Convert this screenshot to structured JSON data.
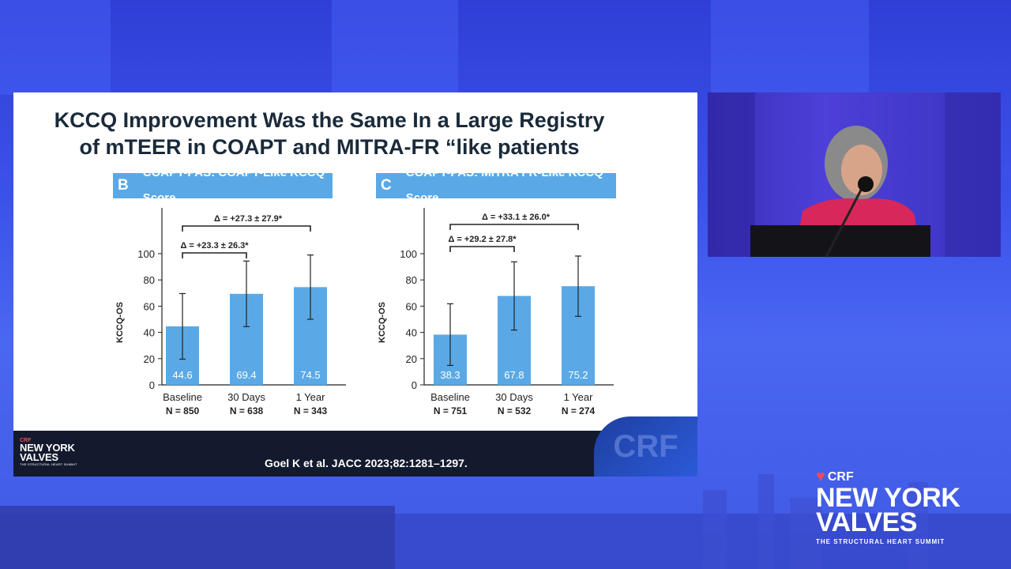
{
  "slide": {
    "title_line1": "KCCQ Improvement Was the Same In a Large Registry",
    "title_line2": "of mTEER in COAPT and MITRA-FR “like patients",
    "citation": "Goel K et al. JACC 2023;82:1281–1297.",
    "footer_logo": {
      "crf": "CRF",
      "line1": "NEW YORK",
      "line2": "VALVES",
      "sub": "THE STRUCTURAL HEART SUMMIT"
    },
    "footer_watermark": "CRF"
  },
  "brand": {
    "crf": "CRF",
    "line1": "NEW YORK",
    "line2": "VALVES",
    "sub": "THE STRUCTURAL HEART SUMMIT"
  },
  "colors": {
    "bar": "#5aa9e6",
    "header": "#5aa9e6",
    "background": "#3b52ea"
  },
  "chart_data": [
    {
      "type": "bar",
      "panel": "B",
      "title": "COAPT-PAS: COAPT-Like KCCQ Score",
      "ylabel": "KCCQ-OS",
      "ylim": [
        0,
        100
      ],
      "yticks": [
        "0",
        "20",
        "40",
        "60",
        "80",
        "100"
      ],
      "categories": [
        "Baseline",
        "30 Days",
        "1 Year"
      ],
      "n_labels": [
        "N = 850",
        "N = 638",
        "N = 343"
      ],
      "values": [
        44.6,
        69.4,
        74.5
      ],
      "value_labels": [
        "44.6",
        "69.4",
        "74.5"
      ],
      "error": [
        25.0,
        25.0,
        24.5
      ],
      "brackets": [
        {
          "from": 0,
          "to": 1,
          "label": "Δ = +23.3 ± 26.3*"
        },
        {
          "from": 0,
          "to": 2,
          "label": "Δ = +27.3 ± 27.9*"
        }
      ]
    },
    {
      "type": "bar",
      "panel": "C",
      "title": "COAPT-PAS: MITRA FR-Like KCCQ Score",
      "ylabel": "KCCQ-OS",
      "ylim": [
        0,
        100
      ],
      "yticks": [
        "0",
        "20",
        "40",
        "60",
        "80",
        "100"
      ],
      "categories": [
        "Baseline",
        "30 Days",
        "1 Year"
      ],
      "n_labels": [
        "N = 751",
        "N = 532",
        "N = 274"
      ],
      "values": [
        38.3,
        67.8,
        75.2
      ],
      "value_labels": [
        "38.3",
        "67.8",
        "75.2"
      ],
      "error": [
        23.5,
        26.0,
        23.0
      ],
      "brackets": [
        {
          "from": 0,
          "to": 1,
          "label": "Δ = +29.2 ± 27.8*"
        },
        {
          "from": 0,
          "to": 2,
          "label": "Δ = +33.1 ± 26.0*"
        }
      ]
    }
  ]
}
